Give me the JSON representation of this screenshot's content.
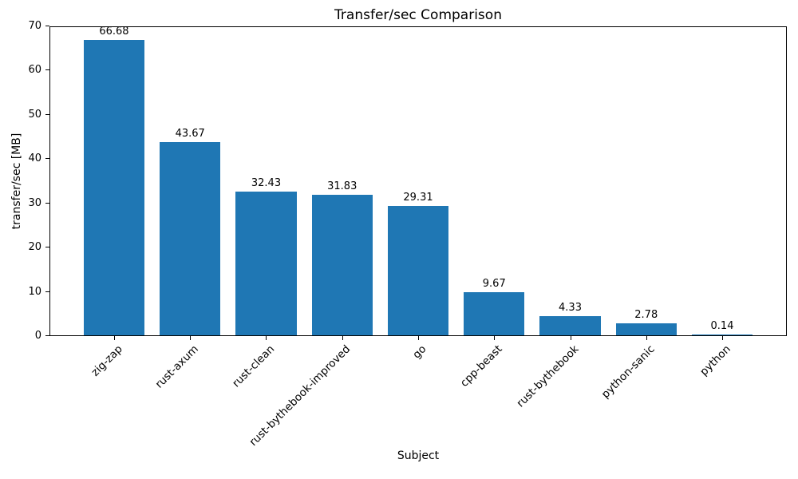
{
  "chart_data": {
    "type": "bar",
    "title": "Transfer/sec Comparison",
    "xlabel": "Subject",
    "ylabel": "transfer/sec [MB]",
    "categories": [
      "zig-zap",
      "rust-axum",
      "rust-clean",
      "rust-bythebook-improved",
      "go",
      "cpp-beast",
      "rust-bythebook",
      "python-sanic",
      "python"
    ],
    "values": [
      66.68,
      43.67,
      32.43,
      31.83,
      29.31,
      9.67,
      4.33,
      2.78,
      0.14
    ],
    "value_labels": [
      "66.68",
      "43.67",
      "32.43",
      "31.83",
      "29.31",
      "9.67",
      "4.33",
      "2.78",
      "0.14"
    ],
    "ylim": [
      0,
      70
    ],
    "yticks": [
      0,
      10,
      20,
      30,
      40,
      50,
      60,
      70
    ],
    "bar_color": "#1f77b4",
    "spine_color": "#000000",
    "text_color": "#000000",
    "grid": false,
    "legend": null,
    "x_tick_rotation_deg": 45
  }
}
